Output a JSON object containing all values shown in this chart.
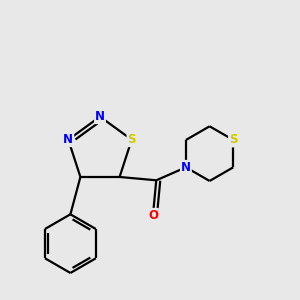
{
  "bg_color": "#e8e8e8",
  "bond_color": "#000000",
  "bond_lw": 1.6,
  "atom_colors": {
    "N": "#0000ff",
    "S": "#cccc00",
    "O": "#ff0000",
    "C": "#000000"
  },
  "font_size_atom": 8.5
}
